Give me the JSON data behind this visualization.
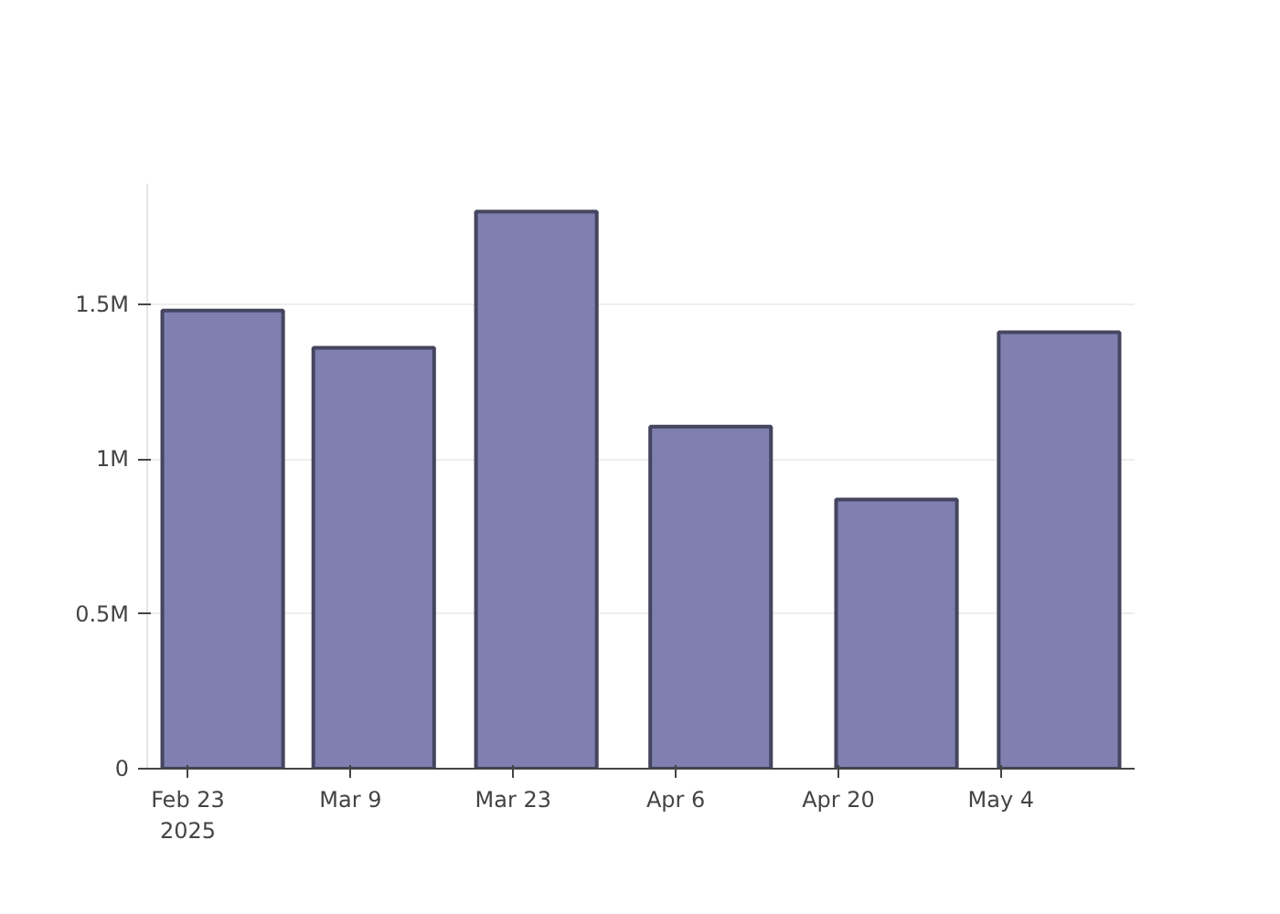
{
  "chart_data": {
    "type": "bar",
    "x": [
      "2025-02-26",
      "2025-03-11",
      "2025-03-25",
      "2025-04-09",
      "2025-04-25",
      "2025-05-09"
    ],
    "values": [
      1480000,
      1360000,
      1800000,
      1105000,
      870000,
      1410000
    ],
    "color": "#7f7fb0",
    "xlim": [
      "2025-02-19T12:00",
      "2025-05-15T12:00"
    ],
    "xticks": [
      {
        "value": "2025-02-23",
        "label": "Feb 23\n2025"
      },
      {
        "value": "2025-03-09",
        "label": "Mar 9"
      },
      {
        "value": "2025-03-23",
        "label": "Mar 23"
      },
      {
        "value": "2025-04-06",
        "label": "Apr 6"
      },
      {
        "value": "2025-04-20",
        "label": "Apr 20"
      },
      {
        "value": "2025-05-04",
        "label": "May 4"
      }
    ],
    "ylim": [
      0,
      1890000
    ],
    "yticks": [
      {
        "value": 0,
        "label": "0"
      },
      {
        "value": 500000,
        "label": "0.5M"
      },
      {
        "value": 1000000,
        "label": "1M"
      },
      {
        "value": 1500000,
        "label": "1.5M"
      }
    ],
    "grid": "y"
  }
}
